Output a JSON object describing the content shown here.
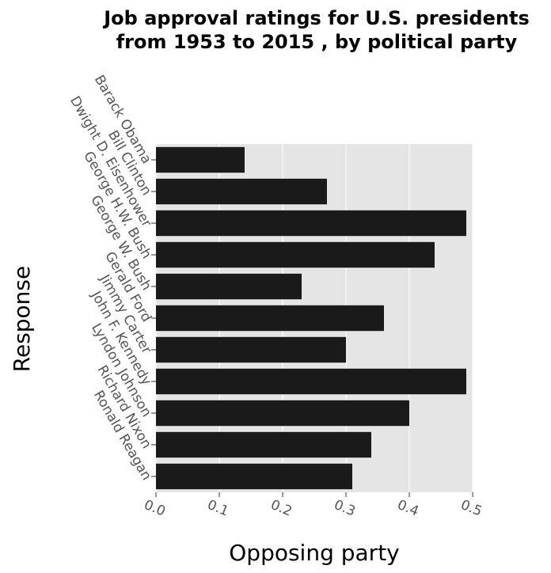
{
  "chart_data": {
    "type": "bar",
    "orientation": "horizontal",
    "title": "Job approval ratings for U.S. presidents from 1953 to 2015 , by political party",
    "title_lines": [
      "Job approval ratings for U.S. presidents",
      "from 1953 to 2015 , by political party"
    ],
    "xlabel": "Opposing party",
    "ylabel": "Response",
    "categories": [
      "Barack Obama",
      "Bill Clinton",
      "Dwight D. Eisenhower",
      "George H.W. Bush",
      "George W. Bush",
      "Gerald Ford",
      "Jimmy Carter",
      "John F. Kennedy",
      "Lyndon Johnson",
      "Richard Nixon",
      "Ronald Reagan"
    ],
    "values": [
      0.14,
      0.27,
      0.49,
      0.44,
      0.23,
      0.36,
      0.3,
      0.49,
      0.4,
      0.34,
      0.31
    ],
    "xlim": [
      0,
      0.5
    ],
    "xticks": [
      "0.0",
      "0.1",
      "0.2",
      "0.3",
      "0.4",
      "0.5"
    ],
    "grid": true,
    "bar_color": "#1a1a1a",
    "plot_background": "#e5e5e5",
    "grid_color": "#ffffff"
  }
}
